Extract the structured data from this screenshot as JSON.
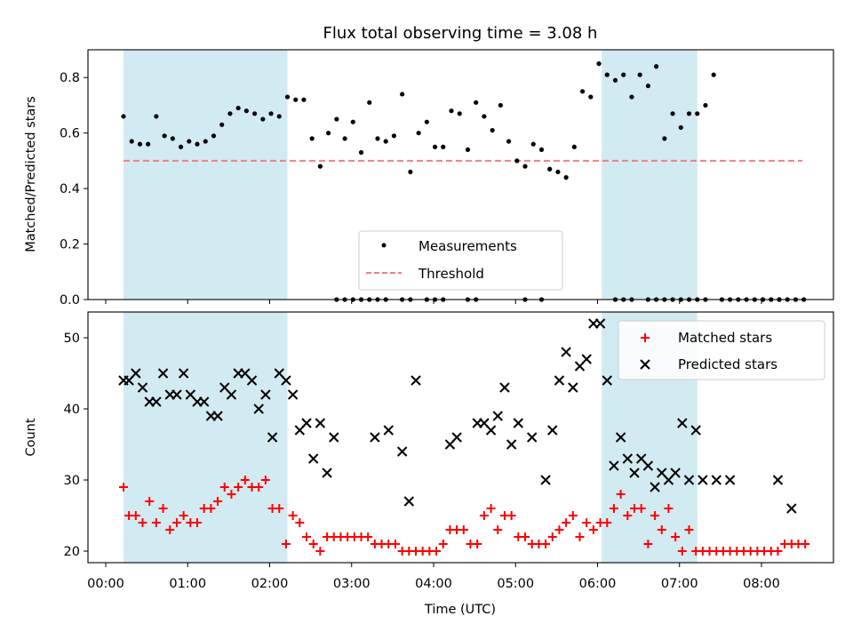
{
  "chart_data": [
    {
      "type": "scatter",
      "title": "Flux total observing time = 3.08 h",
      "xlabel": "",
      "ylabel": "Matched/Predicted stars",
      "xlim": [
        "00:00",
        "08:50"
      ],
      "ylim": [
        0,
        0.9
      ],
      "yticks": [
        "0.0",
        "0.2",
        "0.4",
        "0.6",
        "0.8"
      ],
      "shaded_intervals": [
        [
          "00:13",
          "02:13"
        ],
        [
          "06:03",
          "07:13"
        ]
      ],
      "shade_color": "#add8e6",
      "legend_position": "lower-center",
      "series": [
        {
          "name": "Measurements",
          "color": "#000000",
          "marker": "dot",
          "x": [
            "00:13",
            "00:19",
            "00:25",
            "00:31",
            "00:37",
            "00:43",
            "00:49",
            "00:55",
            "01:01",
            "01:07",
            "01:13",
            "01:19",
            "01:25",
            "01:31",
            "01:37",
            "01:43",
            "01:49",
            "01:55",
            "02:01",
            "02:07",
            "02:13",
            "02:19",
            "02:25",
            "02:31",
            "02:37",
            "02:43",
            "02:49",
            "02:55",
            "03:01",
            "03:07",
            "03:13",
            "03:19",
            "03:25",
            "03:31",
            "03:37",
            "03:43",
            "03:49",
            "03:55",
            "04:01",
            "04:07",
            "04:13",
            "04:19",
            "04:25",
            "04:31",
            "04:37",
            "04:43",
            "04:49",
            "04:55",
            "05:01",
            "05:07",
            "05:13",
            "05:19",
            "05:25",
            "05:31",
            "05:37",
            "05:43",
            "05:49",
            "05:55",
            "06:01",
            "06:07",
            "06:13",
            "06:19",
            "06:25",
            "06:31",
            "06:37",
            "06:43",
            "06:49",
            "06:55",
            "07:01",
            "07:07",
            "07:13",
            "07:19",
            "07:25",
            "07:31",
            "07:37",
            "07:43",
            "07:49",
            "07:55",
            "08:01",
            "08:07",
            "08:13",
            "08:19",
            "08:25",
            "08:31"
          ],
          "y": [
            0.66,
            0.57,
            0.56,
            0.56,
            0.66,
            0.59,
            0.58,
            0.55,
            0.57,
            0.56,
            0.57,
            0.59,
            0.63,
            0.67,
            0.69,
            0.68,
            0.67,
            0.65,
            0.67,
            0.66,
            0.73,
            0.72,
            0.72,
            0.58,
            0.48,
            0.6,
            0.65,
            0.58,
            0.64,
            0.53,
            0.71,
            0.58,
            0.57,
            0.59,
            0.74,
            0.46,
            0.6,
            0.64,
            0.55,
            0.55,
            0.68,
            0.67,
            0.54,
            0.71,
            0.66,
            0.61,
            0.7,
            0.57,
            0.5,
            0.48,
            0.56,
            0.54,
            0.47,
            0.46,
            0.44,
            0.55,
            0.75,
            0.73,
            0.85,
            0.81,
            0.79,
            0.81,
            0.73,
            0.81,
            0.77,
            0.84,
            0.58,
            0.67,
            0.62,
            0.67,
            0.67,
            0.7,
            0.81,
            0.0,
            0.0,
            0.0,
            0.0,
            0.0,
            0.0,
            0.0,
            0.0,
            0.0,
            0.0,
            0.0
          ]
        },
        {
          "name": "Measurements",
          "color": "#000000",
          "marker": "dot",
          "x": [
            "02:49",
            "02:55",
            "03:01",
            "03:07",
            "03:13",
            "03:19",
            "03:25",
            "03:37",
            "03:43",
            "03:55",
            "04:01",
            "04:07",
            "04:25",
            "04:31",
            "05:07",
            "05:19",
            "06:13",
            "06:19",
            "06:25",
            "06:37",
            "06:43",
            "06:49",
            "06:55",
            "07:01",
            "07:07",
            "07:13",
            "07:19",
            "08:01",
            "08:13"
          ],
          "y": [
            0,
            0,
            0,
            0,
            0,
            0,
            0,
            0,
            0,
            0,
            0,
            0,
            0,
            0,
            0,
            0,
            0,
            0,
            0,
            0,
            0,
            0,
            0,
            0,
            0,
            0,
            0,
            0,
            0
          ]
        },
        {
          "name": "Threshold",
          "color": "#f08080",
          "style": "dashed",
          "x": [
            "00:13",
            "08:30"
          ],
          "y": [
            0.5,
            0.5
          ]
        }
      ]
    },
    {
      "type": "scatter",
      "title": "",
      "xlabel": "Time (UTC)",
      "ylabel": "Count",
      "xlim": [
        "00:00",
        "08:50"
      ],
      "ylim": [
        18.3,
        53.7
      ],
      "yticks": [
        "20",
        "30",
        "40",
        "50"
      ],
      "xticks": [
        "00:00",
        "01:00",
        "02:00",
        "03:00",
        "04:00",
        "05:00",
        "06:00",
        "07:00",
        "08:00"
      ],
      "shaded_intervals": [
        [
          "00:13",
          "02:13"
        ],
        [
          "06:03",
          "07:13"
        ]
      ],
      "shade_color": "#add8e6",
      "legend_position": "top-right",
      "series": [
        {
          "name": "Matched stars",
          "color": "#ff0000",
          "marker": "plus",
          "x": [
            "00:13",
            "00:17",
            "00:22",
            "00:27",
            "00:32",
            "00:37",
            "00:42",
            "00:47",
            "00:52",
            "00:57",
            "01:02",
            "01:07",
            "01:12",
            "01:17",
            "01:22",
            "01:27",
            "01:32",
            "01:37",
            "01:42",
            "01:47",
            "01:52",
            "01:57",
            "02:02",
            "02:07",
            "02:12",
            "02:17",
            "02:22",
            "02:27",
            "02:32",
            "02:37",
            "02:42",
            "02:47",
            "02:52",
            "02:57",
            "03:02",
            "03:07",
            "03:12",
            "03:17",
            "03:22",
            "03:27",
            "03:32",
            "03:37",
            "03:42",
            "03:47",
            "03:52",
            "03:57",
            "04:02",
            "04:07",
            "04:12",
            "04:17",
            "04:22",
            "04:27",
            "04:32",
            "04:37",
            "04:42",
            "04:47",
            "04:52",
            "04:57",
            "05:02",
            "05:07",
            "05:12",
            "05:17",
            "05:22",
            "05:27",
            "05:32",
            "05:37",
            "05:42",
            "05:47",
            "05:52",
            "05:57",
            "06:02",
            "06:07",
            "06:12",
            "06:17",
            "06:22",
            "06:27",
            "06:32",
            "06:37",
            "06:42",
            "06:47",
            "06:52",
            "06:57",
            "07:02",
            "07:07",
            "07:12",
            "07:17",
            "07:22",
            "07:27",
            "07:32",
            "07:37",
            "07:42",
            "07:47",
            "07:52",
            "07:57",
            "08:02",
            "08:07",
            "08:12",
            "08:17",
            "08:22",
            "08:27",
            "08:32"
          ],
          "y": [
            29,
            25,
            25,
            24,
            27,
            24,
            26,
            23,
            24,
            25,
            24,
            24,
            26,
            26,
            27,
            29,
            28,
            29,
            30,
            29,
            29,
            30,
            26,
            26,
            21,
            25,
            24,
            22,
            21,
            20,
            22,
            22,
            22,
            22,
            22,
            22,
            22,
            21,
            21,
            21,
            21,
            20,
            20,
            20,
            20,
            20,
            20,
            21,
            23,
            23,
            23,
            21,
            21,
            25,
            26,
            23,
            25,
            25,
            22,
            22,
            21,
            21,
            21,
            22,
            23,
            24,
            25,
            22,
            24,
            23,
            24,
            24,
            26,
            28,
            25,
            26,
            26,
            21,
            25,
            23,
            26,
            22,
            20,
            23,
            20,
            20,
            20,
            20,
            20,
            20,
            20,
            20,
            20,
            20,
            20,
            20,
            20,
            21,
            21,
            21,
            21
          ]
        },
        {
          "name": "Predicted stars",
          "color": "#000000",
          "marker": "x",
          "x": [
            "00:13",
            "00:17",
            "00:22",
            "00:27",
            "00:32",
            "00:37",
            "00:42",
            "00:47",
            "00:52",
            "00:57",
            "01:02",
            "01:07",
            "01:12",
            "01:17",
            "01:22",
            "01:27",
            "01:32",
            "01:37",
            "01:42",
            "01:47",
            "01:52",
            "01:57",
            "02:02",
            "02:07",
            "02:12",
            "02:17",
            "02:22",
            "02:27",
            "02:32",
            "02:37",
            "02:42",
            "02:47",
            "03:17",
            "03:27",
            "03:37",
            "03:42",
            "03:47",
            "04:12",
            "04:17",
            "04:32",
            "04:37",
            "04:42",
            "04:47",
            "04:52",
            "04:57",
            "05:02",
            "05:12",
            "05:22",
            "05:27",
            "05:32",
            "05:37",
            "05:42",
            "05:47",
            "05:52",
            "05:57",
            "06:02",
            "06:07",
            "06:12",
            "06:17",
            "06:22",
            "06:27",
            "06:32",
            "06:37",
            "06:42",
            "06:47",
            "06:52",
            "06:57",
            "07:02",
            "07:07",
            "07:12",
            "07:17",
            "07:27",
            "07:37",
            "08:12",
            "08:22"
          ],
          "y": [
            44,
            44,
            45,
            43,
            41,
            41,
            45,
            42,
            42,
            45,
            42,
            41,
            41,
            39,
            39,
            43,
            42,
            45,
            45,
            44,
            40,
            42,
            36,
            45,
            44,
            42,
            37,
            38,
            33,
            38,
            31,
            36,
            36,
            37,
            34,
            27,
            44,
            35,
            36,
            38,
            38,
            37,
            39,
            43,
            35,
            38,
            36,
            30,
            37,
            44,
            48,
            43,
            46,
            47,
            52,
            52,
            44,
            32,
            36,
            33,
            31,
            33,
            32,
            29,
            31,
            30,
            31,
            38,
            30,
            37,
            30,
            30,
            30,
            30,
            26
          ]
        }
      ]
    }
  ]
}
